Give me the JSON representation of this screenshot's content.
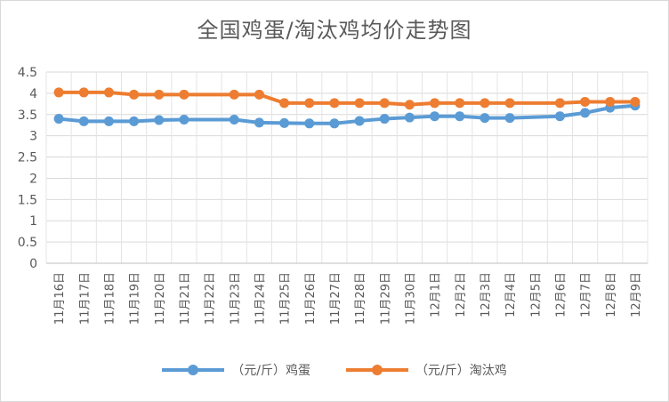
{
  "chart_data": {
    "type": "line",
    "title": "全国鸡蛋/淘汰鸡均价走势图",
    "xlabel": "",
    "ylabel": "",
    "ylim": [
      0,
      4.5
    ],
    "yticks": [
      "0",
      "0.5",
      "1",
      "1.5",
      "2",
      "2.5",
      "3",
      "3.5",
      "4",
      "4.5"
    ],
    "grid": true,
    "legend_position": "bottom",
    "categories": [
      "11月16日",
      "11月17日",
      "11月18日",
      "11月19日",
      "11月20日",
      "11月21日",
      "11月22日",
      "11月23日",
      "11月24日",
      "11月25日",
      "11月26日",
      "11月27日",
      "11月28日",
      "11月29日",
      "11月30日",
      "12月1日",
      "12月2日",
      "12月3日",
      "12月4日",
      "12月5日",
      "12月6日",
      "12月7日",
      "12月8日",
      "12月9日"
    ],
    "series": [
      {
        "name": "（元/斤）鸡蛋",
        "color": "#5b9bd5",
        "values": [
          3.4,
          3.34,
          3.34,
          3.34,
          3.37,
          3.38,
          null,
          3.38,
          3.31,
          3.3,
          3.29,
          3.29,
          3.35,
          3.4,
          3.43,
          3.46,
          3.46,
          3.42,
          3.42,
          null,
          3.46,
          3.54,
          3.66,
          3.71
        ]
      },
      {
        "name": "（元/斤）淘汰鸡",
        "color": "#ed7d31",
        "values": [
          4.02,
          4.02,
          4.02,
          3.97,
          3.97,
          3.97,
          null,
          3.97,
          3.97,
          3.77,
          3.77,
          3.77,
          3.77,
          3.77,
          3.73,
          3.77,
          3.77,
          3.77,
          3.77,
          null,
          3.77,
          3.8,
          3.8,
          3.8
        ]
      }
    ]
  }
}
